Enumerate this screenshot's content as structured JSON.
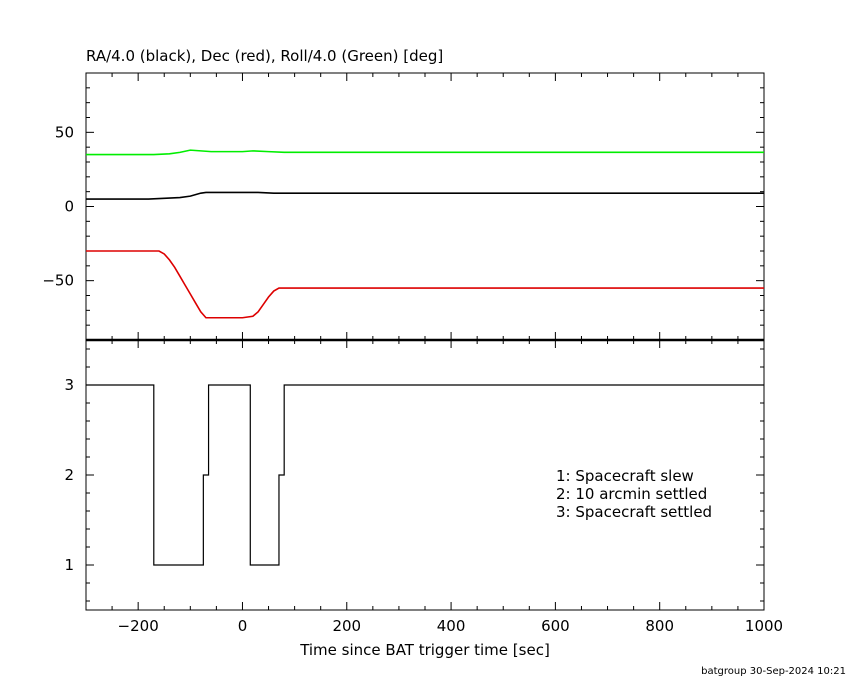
{
  "chart_data": [
    {
      "type": "line",
      "title": "RA/4.0 (black), Dec (red), Roll/4.0 (Green) [deg]",
      "xlim": [
        -300,
        1000
      ],
      "ylim": [
        -90,
        90
      ],
      "yticks": [
        -50,
        0,
        50
      ],
      "series": [
        {
          "color": "#000000",
          "x": [
            -300,
            -180,
            -150,
            -120,
            -100,
            -80,
            -70,
            0,
            30,
            60,
            80,
            1000
          ],
          "y": [
            5,
            5,
            5.5,
            6,
            7,
            9,
            9.5,
            9.5,
            9.5,
            9,
            9,
            9
          ]
        },
        {
          "color": "#dd0000",
          "x": [
            -300,
            -160,
            -150,
            -140,
            -130,
            -120,
            -110,
            -100,
            -90,
            -80,
            -70,
            0,
            20,
            30,
            40,
            50,
            60,
            70,
            80,
            1000
          ],
          "y": [
            -30,
            -30,
            -32,
            -36,
            -41,
            -47,
            -53,
            -59,
            -65,
            -71,
            -75,
            -75,
            -74,
            -71,
            -66,
            -61,
            -57,
            -55,
            -55,
            -55
          ]
        },
        {
          "color": "#00ee00",
          "x": [
            -300,
            -170,
            -140,
            -120,
            -100,
            -80,
            -60,
            0,
            20,
            50,
            80,
            1000
          ],
          "y": [
            35,
            35,
            35.5,
            36.5,
            38,
            37.5,
            37,
            37,
            37.5,
            37,
            36.5,
            36.5
          ]
        }
      ]
    },
    {
      "type": "line",
      "xlabel": "Time since BAT trigger time [sec]",
      "xlim": [
        -300,
        1000
      ],
      "ylim": [
        0.5,
        3.5
      ],
      "xticks": [
        -200,
        0,
        200,
        400,
        600,
        800,
        1000
      ],
      "yticks": [
        1,
        2,
        3
      ],
      "legend": [
        "1: Spacecraft slew",
        "2: 10 arcmin settled",
        "3: Spacecraft settled"
      ],
      "series": [
        {
          "color": "#000000",
          "step": true,
          "x": [
            -300,
            -170,
            -75,
            -65,
            15,
            70,
            80,
            1000
          ],
          "y": [
            3,
            1,
            2,
            3,
            1,
            2,
            3,
            3
          ]
        }
      ]
    }
  ],
  "footer": "batgroup 30-Sep-2024 10:21"
}
